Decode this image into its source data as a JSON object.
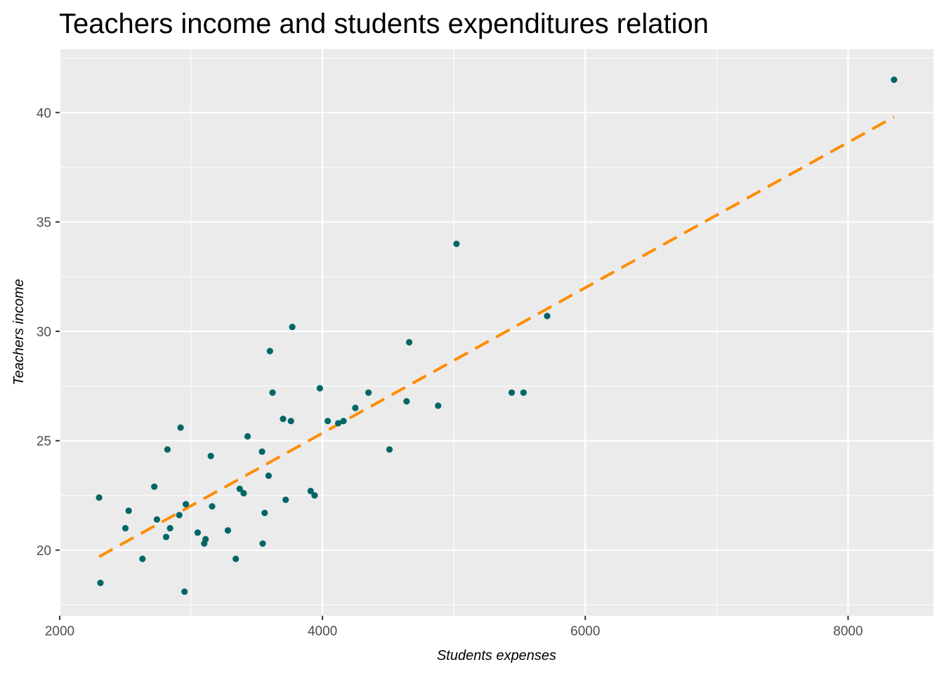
{
  "chart_data": {
    "type": "scatter",
    "title": "Teachers income and students expenditures relation",
    "xlabel": "Students expenses",
    "ylabel": "Teachers income",
    "xlim": [
      2000,
      8650
    ],
    "ylim": [
      17.0,
      42.9
    ],
    "x_ticks": [
      2000,
      4000,
      6000,
      8000
    ],
    "x_minor_ticks": [
      3000,
      5000,
      7000
    ],
    "y_ticks": [
      20,
      25,
      30,
      35,
      40
    ],
    "y_minor_ticks": [
      17.5,
      22.5,
      27.5,
      32.5,
      37.5,
      42.5
    ],
    "grid": true,
    "legend": "none",
    "colors": {
      "panel_background": "#ebebeb",
      "grid": "#ffffff",
      "points": "#006666",
      "trend_line": "#ff8c00"
    },
    "points": [
      {
        "x": 2300,
        "y": 22.4
      },
      {
        "x": 2310,
        "y": 18.5
      },
      {
        "x": 2500,
        "y": 21.0
      },
      {
        "x": 2525,
        "y": 21.8
      },
      {
        "x": 2630,
        "y": 19.6
      },
      {
        "x": 2720,
        "y": 22.9
      },
      {
        "x": 2740,
        "y": 21.4
      },
      {
        "x": 2810,
        "y": 20.6
      },
      {
        "x": 2820,
        "y": 24.6
      },
      {
        "x": 2840,
        "y": 21.0
      },
      {
        "x": 2910,
        "y": 21.6
      },
      {
        "x": 2920,
        "y": 25.6
      },
      {
        "x": 2950,
        "y": 18.1
      },
      {
        "x": 2960,
        "y": 22.1
      },
      {
        "x": 3050,
        "y": 20.8
      },
      {
        "x": 3100,
        "y": 20.3
      },
      {
        "x": 3110,
        "y": 20.5
      },
      {
        "x": 3150,
        "y": 24.3
      },
      {
        "x": 3160,
        "y": 22.0
      },
      {
        "x": 3280,
        "y": 20.9
      },
      {
        "x": 3340,
        "y": 19.6
      },
      {
        "x": 3370,
        "y": 22.8
      },
      {
        "x": 3400,
        "y": 22.6
      },
      {
        "x": 3430,
        "y": 25.2
      },
      {
        "x": 3540,
        "y": 24.5
      },
      {
        "x": 3545,
        "y": 20.3
      },
      {
        "x": 3560,
        "y": 21.7
      },
      {
        "x": 3590,
        "y": 23.4
      },
      {
        "x": 3600,
        "y": 29.1
      },
      {
        "x": 3620,
        "y": 27.2
      },
      {
        "x": 3700,
        "y": 26.0
      },
      {
        "x": 3720,
        "y": 22.3
      },
      {
        "x": 3760,
        "y": 25.9
      },
      {
        "x": 3770,
        "y": 30.2
      },
      {
        "x": 3910,
        "y": 22.7
      },
      {
        "x": 3940,
        "y": 22.5
      },
      {
        "x": 3980,
        "y": 27.4
      },
      {
        "x": 4040,
        "y": 25.9
      },
      {
        "x": 4120,
        "y": 25.8
      },
      {
        "x": 4160,
        "y": 25.9
      },
      {
        "x": 4250,
        "y": 26.5
      },
      {
        "x": 4350,
        "y": 27.2
      },
      {
        "x": 4510,
        "y": 24.6
      },
      {
        "x": 4640,
        "y": 26.8
      },
      {
        "x": 4660,
        "y": 29.5
      },
      {
        "x": 4880,
        "y": 26.6
      },
      {
        "x": 5020,
        "y": 34.0
      },
      {
        "x": 5440,
        "y": 27.2
      },
      {
        "x": 5530,
        "y": 27.2
      },
      {
        "x": 5710,
        "y": 30.7
      },
      {
        "x": 8350,
        "y": 41.5
      }
    ],
    "trend_line": {
      "style": "dashed",
      "x": [
        2300,
        8350
      ],
      "y": [
        19.7,
        39.8
      ]
    }
  }
}
